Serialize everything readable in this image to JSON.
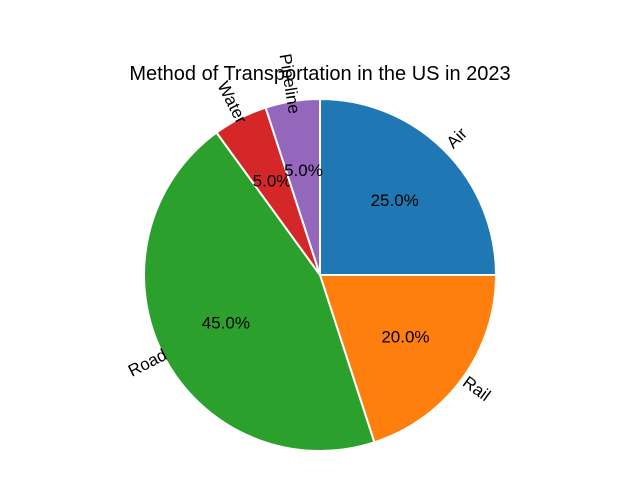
{
  "chart_data": {
    "type": "pie",
    "title": "Method of Transportation in the US in 2023",
    "labels": [
      "Air",
      "Rail",
      "Road",
      "Water",
      "Pipeline"
    ],
    "values": [
      25.0,
      20.0,
      45.0,
      5.0,
      5.0
    ],
    "percent_labels": [
      "25.0%",
      "20.0%",
      "45.0%",
      "5.0%",
      "5.0%"
    ],
    "colors": [
      "#1f77b4",
      "#ff7f0e",
      "#2ca02c",
      "#d62728",
      "#9467bd"
    ],
    "start_angle": "top (90°)",
    "direction": "clockwise",
    "legend": "none"
  }
}
